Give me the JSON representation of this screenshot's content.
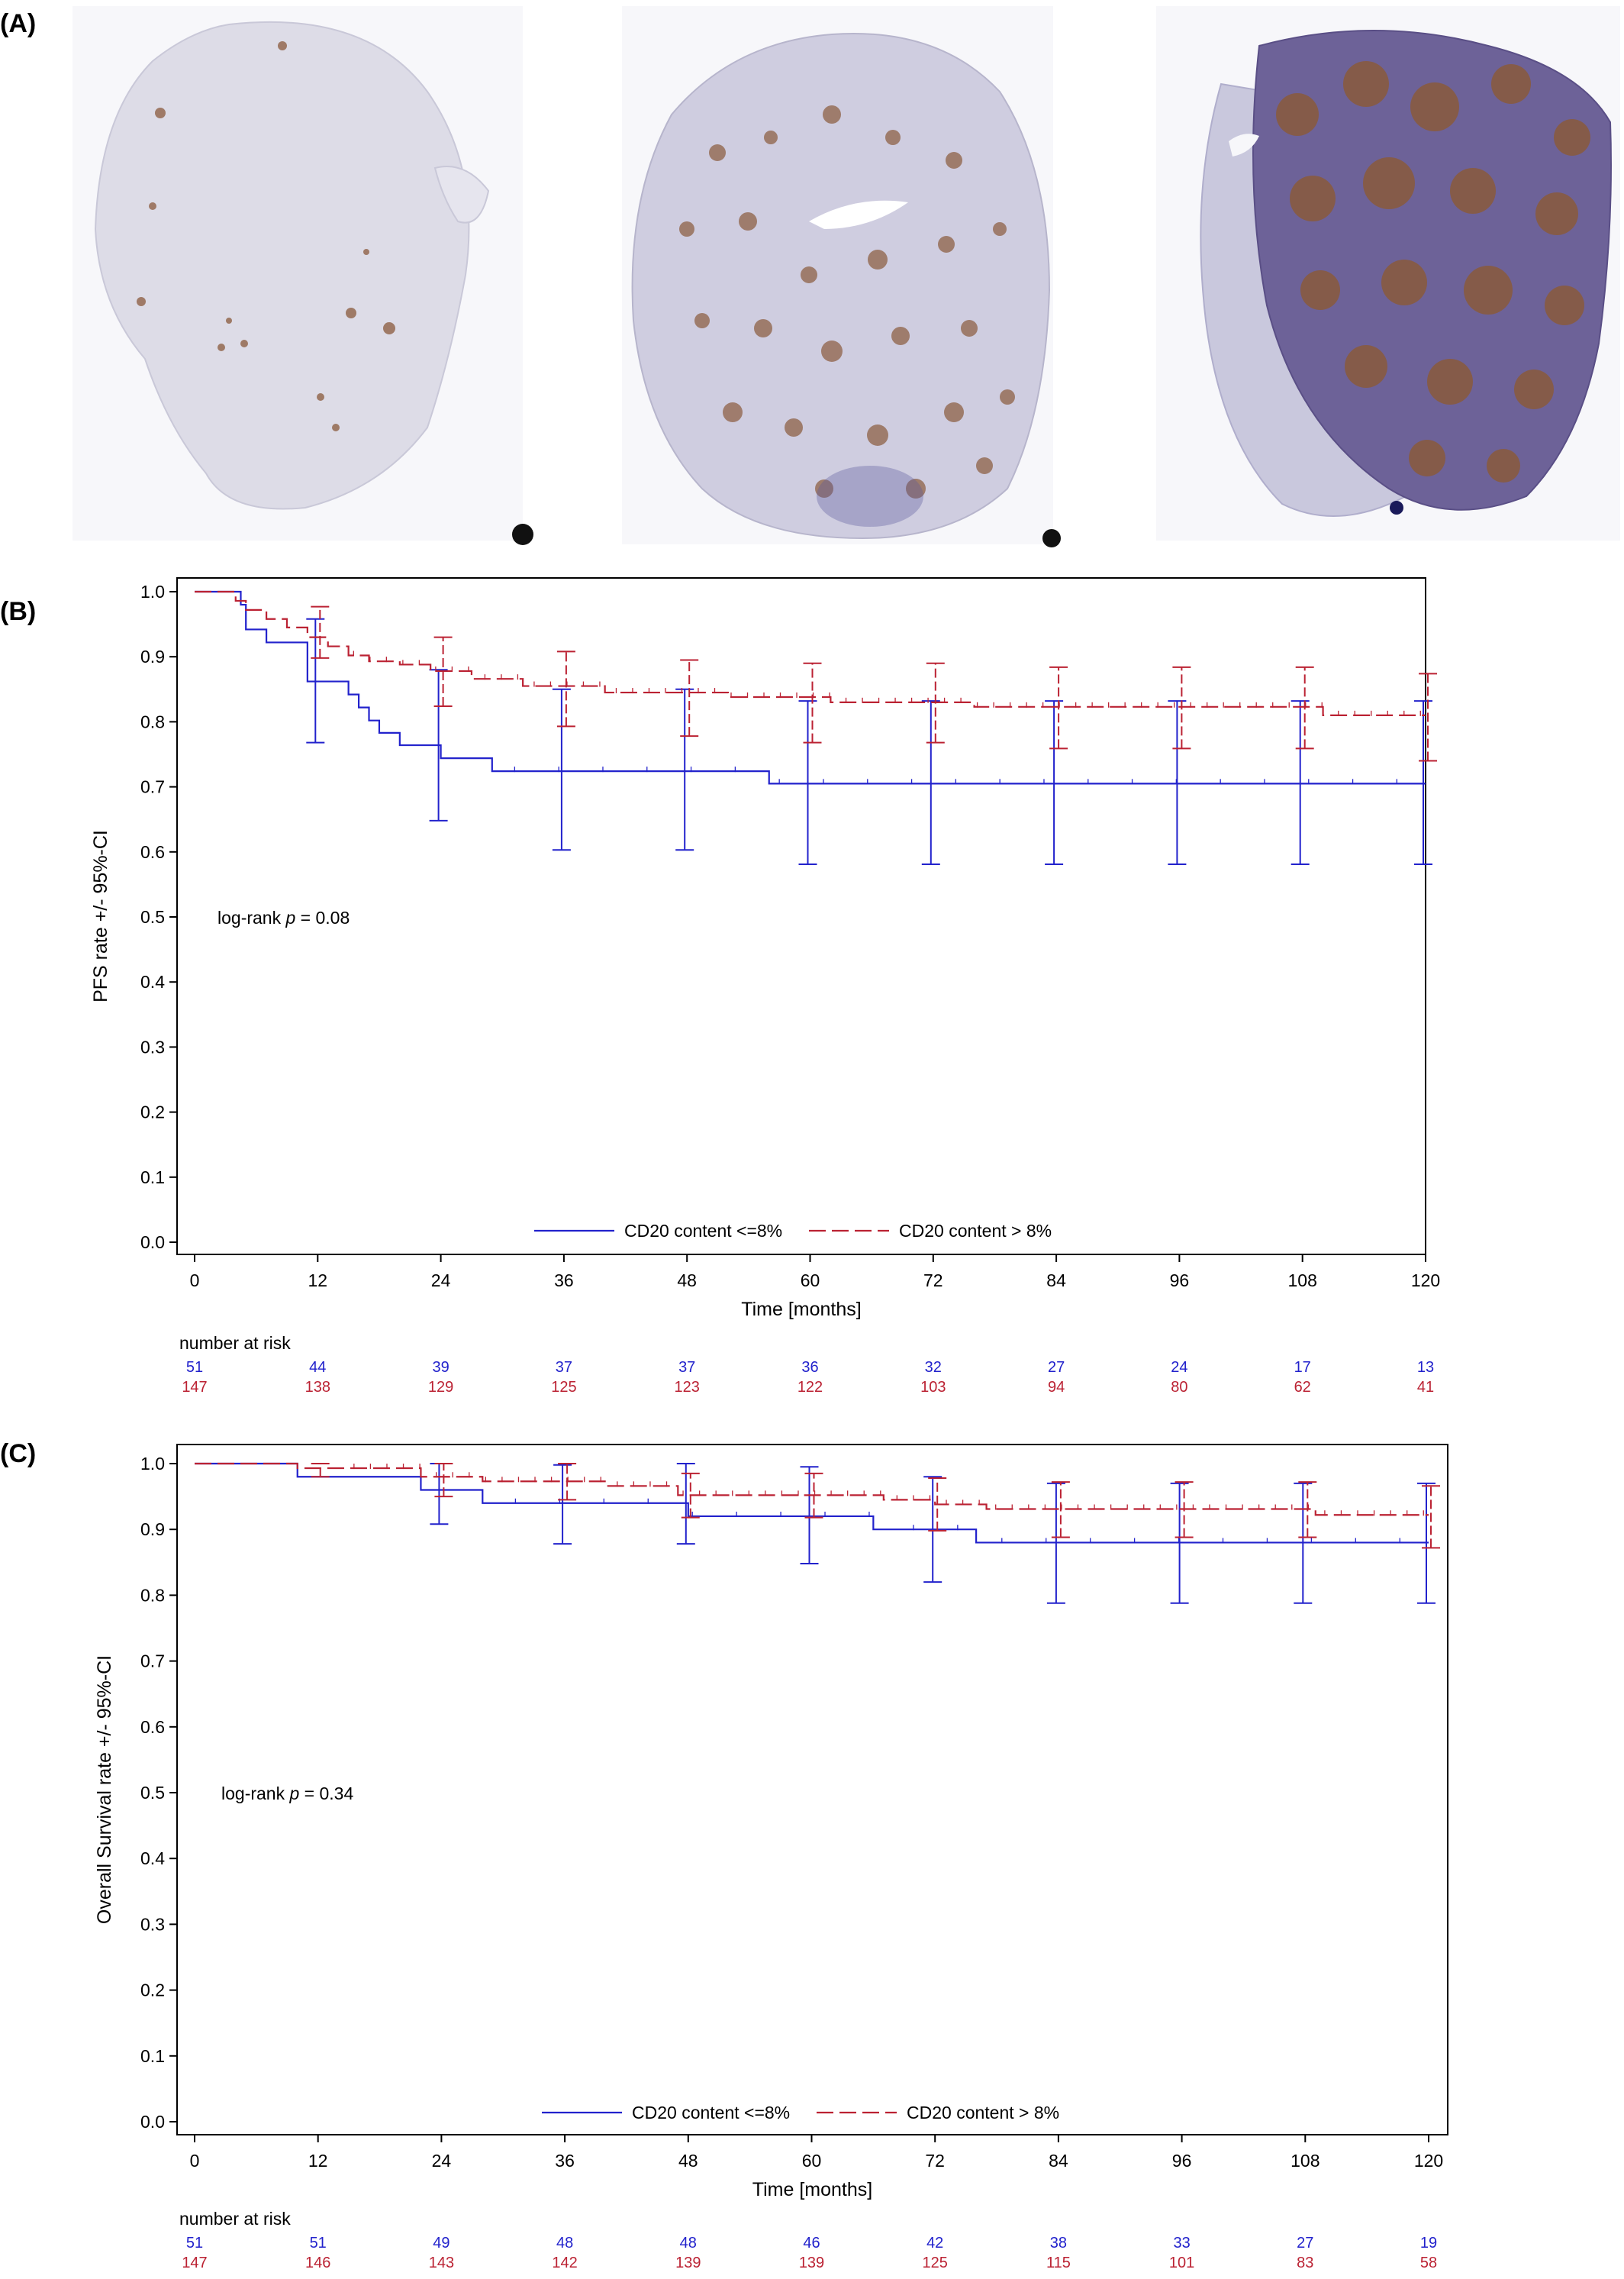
{
  "panels": {
    "a": {
      "label": "(A)"
    },
    "b": {
      "label": "(B)"
    },
    "c": {
      "label": "(C)"
    }
  },
  "colors": {
    "low": "#2222cc",
    "high": "#bb2233",
    "tissue": "#dcdbe6",
    "stain": "#8a5a3c"
  },
  "chart_data": [
    {
      "type": "line",
      "ylabel": "PFS rate +/- 95%-CI",
      "xlabel": "Time [months]",
      "xlim": [
        0,
        120
      ],
      "ylim": [
        0,
        1
      ],
      "xticks": [
        "0",
        "12",
        "24",
        "36",
        "48",
        "60",
        "72",
        "84",
        "96",
        "108",
        "120"
      ],
      "yticks": [
        "0.0",
        "0.1",
        "0.2",
        "0.3",
        "0.4",
        "0.5",
        "0.6",
        "0.7",
        "0.8",
        "0.9",
        "1.0"
      ],
      "annotation_pre": "log-rank ",
      "annotation_p": "p",
      "annotation_post": " = 0.08",
      "legend_placement": "bottom-center",
      "risk_title": "number at risk",
      "series": [
        {
          "name": "CD20 content <=8%",
          "style": "solid",
          "x": [
            0,
            4.5,
            5,
            7,
            11,
            12,
            14,
            15,
            16,
            17,
            18,
            20,
            22,
            24,
            29,
            56,
            120
          ],
          "y": [
            1.0,
            0.98,
            0.942,
            0.922,
            0.862,
            0.862,
            0.862,
            0.842,
            0.822,
            0.802,
            0.783,
            0.764,
            0.764,
            0.744,
            0.724,
            0.705,
            0.705
          ],
          "ci_x": [
            12,
            24,
            36,
            48,
            60,
            72,
            84,
            96,
            108,
            120
          ],
          "ci_low": [
            0.768,
            0.648,
            0.603,
            0.603,
            0.581,
            0.581,
            0.581,
            0.581,
            0.581,
            0.581
          ],
          "ci_high": [
            0.958,
            0.88,
            0.85,
            0.85,
            0.832,
            0.832,
            0.832,
            0.832,
            0.832,
            0.832
          ],
          "risk": [
            "51",
            "44",
            "39",
            "37",
            "37",
            "36",
            "32",
            "27",
            "24",
            "17",
            "13"
          ]
        },
        {
          "name": "CD20 content > 8%",
          "style": "dashed",
          "x": [
            0,
            4,
            5,
            7,
            9,
            11,
            13,
            15,
            17,
            20,
            23,
            27,
            32,
            40,
            52,
            62,
            76,
            110,
            120
          ],
          "y": [
            1.0,
            0.986,
            0.972,
            0.958,
            0.945,
            0.93,
            0.916,
            0.902,
            0.893,
            0.888,
            0.878,
            0.866,
            0.855,
            0.845,
            0.838,
            0.83,
            0.823,
            0.81,
            0.81
          ],
          "ci_x": [
            12,
            24,
            36,
            48,
            60,
            72,
            84,
            96,
            108,
            120
          ],
          "ci_low": [
            0.898,
            0.824,
            0.793,
            0.778,
            0.768,
            0.768,
            0.759,
            0.759,
            0.759,
            0.74
          ],
          "ci_high": [
            0.977,
            0.93,
            0.908,
            0.895,
            0.89,
            0.89,
            0.884,
            0.884,
            0.884,
            0.874
          ],
          "risk": [
            "147",
            "138",
            "129",
            "125",
            "123",
            "122",
            "103",
            "94",
            "80",
            "62",
            "41"
          ]
        }
      ]
    },
    {
      "type": "line",
      "ylabel": "Overall Survival rate +/- 95%-CI",
      "xlabel": "Time [months]",
      "xlim": [
        0,
        120
      ],
      "ylim": [
        0,
        1
      ],
      "xticks": [
        "0",
        "12",
        "24",
        "36",
        "48",
        "60",
        "72",
        "84",
        "96",
        "108",
        "120"
      ],
      "yticks": [
        "0.0",
        "0.1",
        "0.2",
        "0.3",
        "0.4",
        "0.5",
        "0.6",
        "0.7",
        "0.8",
        "0.9",
        "1.0"
      ],
      "annotation_pre": "log-rank ",
      "annotation_p": "p",
      "annotation_post": " = 0.34",
      "legend_placement": "bottom-center",
      "risk_title": "number at risk",
      "series": [
        {
          "name": "CD20 content <=8%",
          "style": "solid",
          "x": [
            0,
            10,
            22,
            28,
            48,
            66,
            76,
            120
          ],
          "y": [
            1.0,
            0.98,
            0.96,
            0.94,
            0.92,
            0.9,
            0.88,
            0.88
          ],
          "ci_x": [
            24,
            36,
            48,
            60,
            72,
            84,
            96,
            108,
            120
          ],
          "ci_low": [
            0.908,
            0.878,
            0.878,
            0.848,
            0.82,
            0.788,
            0.788,
            0.788,
            0.788
          ],
          "ci_high": [
            1.0,
            0.998,
            1.0,
            0.995,
            0.98,
            0.97,
            0.97,
            0.97,
            0.97
          ],
          "risk": [
            "51",
            "51",
            "49",
            "48",
            "48",
            "46",
            "42",
            "38",
            "33",
            "27",
            "19"
          ]
        },
        {
          "name": "CD20 content > 8%",
          "style": "dashed",
          "x": [
            0,
            10,
            13,
            22,
            28,
            40,
            47,
            62,
            67,
            72,
            77,
            88,
            105,
            109,
            120
          ],
          "y": [
            1.0,
            0.993,
            0.993,
            0.98,
            0.973,
            0.966,
            0.952,
            0.952,
            0.945,
            0.938,
            0.931,
            0.931,
            0.931,
            0.922,
            0.922
          ],
          "ci_x": [
            12,
            24,
            36,
            48,
            60,
            72,
            84,
            96,
            108,
            120
          ],
          "ci_low": [
            0.98,
            0.95,
            0.945,
            0.918,
            0.918,
            0.898,
            0.888,
            0.888,
            0.888,
            0.872
          ],
          "ci_high": [
            1.0,
            1.0,
            1.0,
            0.985,
            0.985,
            0.978,
            0.972,
            0.972,
            0.972,
            0.966
          ],
          "risk": [
            "147",
            "146",
            "143",
            "142",
            "139",
            "139",
            "125",
            "115",
            "101",
            "83",
            "58"
          ]
        }
      ]
    }
  ]
}
